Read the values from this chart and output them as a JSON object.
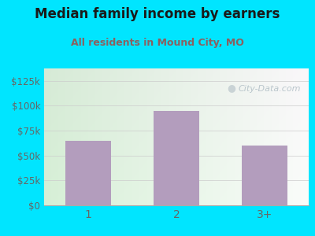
{
  "categories": [
    "1",
    "2",
    "3+"
  ],
  "values": [
    65000,
    95000,
    60000
  ],
  "bar_color": "#b39dbd",
  "title": "Median family income by earners",
  "subtitle": "All residents in Mound City, MO",
  "title_color": "#1a1a1a",
  "subtitle_color": "#8b6060",
  "bg_color": "#00e5ff",
  "yticks": [
    0,
    25000,
    50000,
    75000,
    100000,
    125000
  ],
  "ytick_labels": [
    "$0",
    "$25k",
    "$50k",
    "$75k",
    "$100k",
    "$125k"
  ],
  "ylim": [
    0,
    137500
  ],
  "watermark": "City-Data.com",
  "watermark_color": "#b0bec5",
  "axis_line_color": "#aaaaaa",
  "tick_color": "#666666",
  "grid_color": "#cccccc"
}
